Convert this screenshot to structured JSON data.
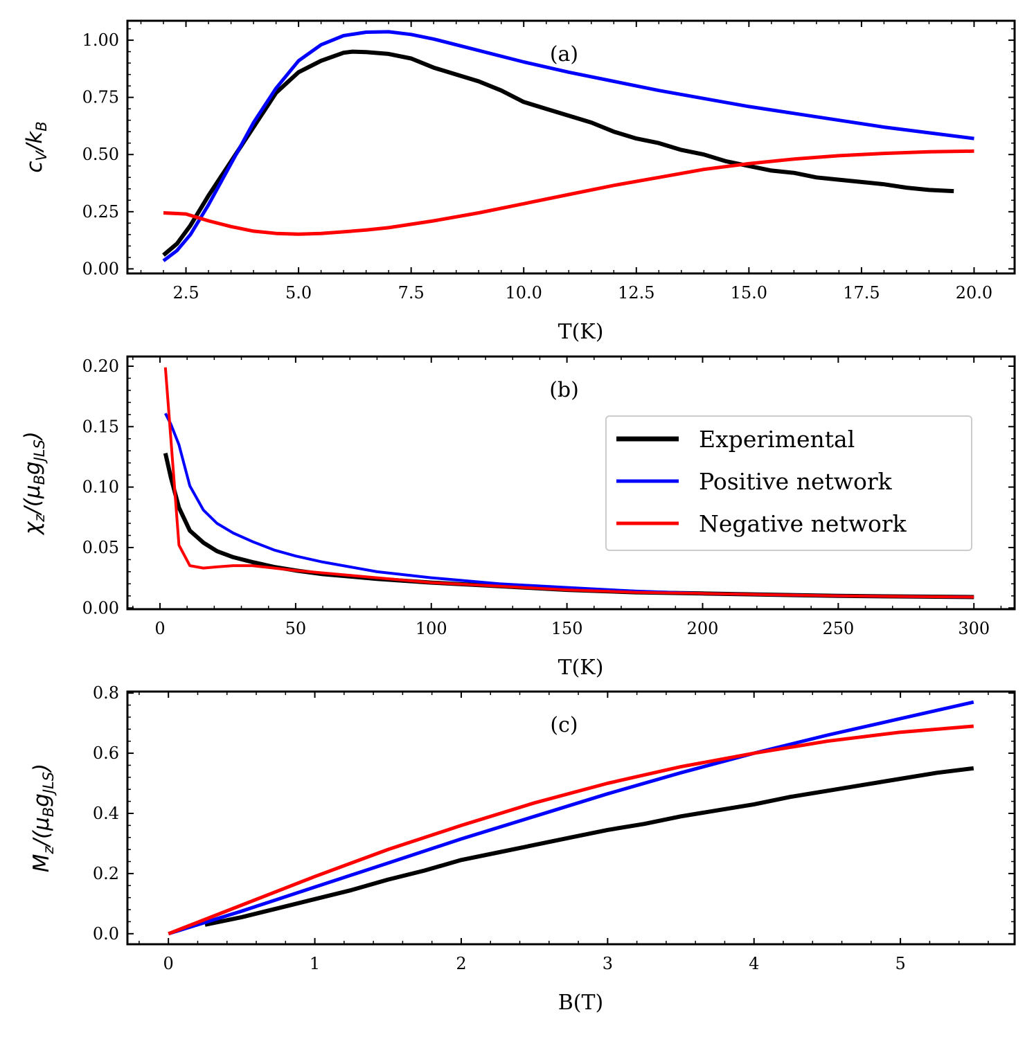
{
  "colors": {
    "experimental": "#000000",
    "positive": "#0000ff",
    "negative": "#ff0000"
  },
  "legend": {
    "entries": [
      "Experimental",
      "Positive network",
      "Negative network"
    ],
    "location": "right (panel b)"
  },
  "chart_data": [
    {
      "type": "line",
      "panel_label": "(a)",
      "xlabel": "T(K)",
      "ylabel_parts": [
        "c",
        "V",
        "/k",
        "B"
      ],
      "xlim": [
        1.2,
        20.9
      ],
      "ylim": [
        -0.02,
        1.085
      ],
      "xticks": [
        2.5,
        5.0,
        7.5,
        10.0,
        12.5,
        15.0,
        17.5,
        20.0
      ],
      "xtick_labels": [
        "2.5",
        "5.0",
        "7.5",
        "10.0",
        "12.5",
        "15.0",
        "17.5",
        "20.0"
      ],
      "yticks": [
        0.0,
        0.25,
        0.5,
        0.75,
        1.0
      ],
      "ytick_labels": [
        "0.00",
        "0.25",
        "0.50",
        "0.75",
        "1.00"
      ],
      "series": [
        {
          "name": "Experimental",
          "color": "#000000",
          "width": 6,
          "x": [
            2.0,
            2.3,
            2.6,
            3.0,
            3.5,
            4.0,
            4.5,
            5.0,
            5.5,
            6.0,
            6.2,
            6.5,
            7.0,
            7.5,
            8.0,
            8.5,
            9.0,
            9.5,
            10.0,
            10.5,
            11.0,
            11.5,
            12.0,
            12.5,
            13.0,
            13.5,
            14.0,
            14.5,
            15.0,
            15.5,
            16.0,
            16.5,
            17.0,
            17.5,
            18.0,
            18.5,
            19.0,
            19.55
          ],
          "y": [
            0.06,
            0.11,
            0.19,
            0.32,
            0.47,
            0.62,
            0.77,
            0.86,
            0.91,
            0.945,
            0.95,
            0.948,
            0.94,
            0.92,
            0.88,
            0.85,
            0.82,
            0.78,
            0.73,
            0.7,
            0.67,
            0.64,
            0.6,
            0.57,
            0.55,
            0.52,
            0.5,
            0.47,
            0.45,
            0.43,
            0.42,
            0.4,
            0.39,
            0.38,
            0.37,
            0.355,
            0.345,
            0.34
          ]
        },
        {
          "name": "Positive network",
          "color": "#0000ff",
          "width": 5,
          "x": [
            2.0,
            2.3,
            2.6,
            3.0,
            3.5,
            4.0,
            4.5,
            5.0,
            5.5,
            6.0,
            6.5,
            7.0,
            7.5,
            8.0,
            9.0,
            10.0,
            11.0,
            12.0,
            13.0,
            14.0,
            15.0,
            16.0,
            17.0,
            18.0,
            19.0,
            20.0
          ],
          "y": [
            0.035,
            0.08,
            0.15,
            0.28,
            0.46,
            0.64,
            0.79,
            0.91,
            0.98,
            1.02,
            1.035,
            1.037,
            1.025,
            1.005,
            0.955,
            0.905,
            0.86,
            0.82,
            0.78,
            0.745,
            0.71,
            0.68,
            0.65,
            0.62,
            0.595,
            0.57
          ]
        },
        {
          "name": "Negative network",
          "color": "#ff0000",
          "width": 5,
          "x": [
            2.0,
            2.5,
            3.0,
            3.5,
            4.0,
            4.5,
            5.0,
            5.5,
            6.0,
            6.5,
            7.0,
            8.0,
            9.0,
            10.0,
            11.0,
            12.0,
            13.0,
            14.0,
            15.0,
            16.0,
            17.0,
            18.0,
            19.0,
            20.0
          ],
          "y": [
            0.245,
            0.24,
            0.21,
            0.185,
            0.165,
            0.155,
            0.152,
            0.155,
            0.162,
            0.17,
            0.18,
            0.21,
            0.245,
            0.285,
            0.325,
            0.365,
            0.4,
            0.435,
            0.46,
            0.48,
            0.495,
            0.505,
            0.512,
            0.515
          ]
        }
      ]
    },
    {
      "type": "line",
      "panel_label": "(b)",
      "xlabel": "T(K)",
      "ylabel_parts": [
        "χ",
        "z",
        "/(μ",
        "B",
        "g",
        "JLS",
        ")"
      ],
      "xlim": [
        -12,
        315
      ],
      "ylim": [
        -0.001,
        0.208
      ],
      "xticks": [
        0,
        50,
        100,
        150,
        200,
        250,
        300
      ],
      "xtick_labels": [
        "0",
        "50",
        "100",
        "150",
        "200",
        "250",
        "300"
      ],
      "yticks": [
        0.0,
        0.05,
        0.1,
        0.15,
        0.2
      ],
      "ytick_labels": [
        "0.00",
        "0.05",
        "0.10",
        "0.15",
        "0.20"
      ],
      "series": [
        {
          "name": "Experimental",
          "color": "#000000",
          "width": 6,
          "x": [
            2,
            4,
            7,
            11,
            16,
            21,
            27,
            34,
            42,
            50,
            60,
            70,
            80,
            100,
            125,
            150,
            175,
            200,
            250,
            300
          ],
          "y": [
            0.128,
            0.108,
            0.083,
            0.064,
            0.054,
            0.047,
            0.042,
            0.038,
            0.034,
            0.031,
            0.028,
            0.026,
            0.024,
            0.021,
            0.018,
            0.015,
            0.013,
            0.012,
            0.01,
            0.009
          ]
        },
        {
          "name": "Positive network",
          "color": "#0000ff",
          "width": 4,
          "x": [
            2,
            4,
            7,
            11,
            16,
            21,
            27,
            34,
            42,
            50,
            60,
            70,
            80,
            100,
            125,
            150,
            175,
            200,
            250,
            300
          ],
          "y": [
            0.161,
            0.152,
            0.135,
            0.101,
            0.081,
            0.07,
            0.062,
            0.055,
            0.048,
            0.043,
            0.038,
            0.034,
            0.03,
            0.025,
            0.02,
            0.017,
            0.014,
            0.012,
            0.01,
            0.009
          ]
        },
        {
          "name": "Negative network",
          "color": "#ff0000",
          "width": 4,
          "x": [
            2,
            4,
            7,
            11,
            16,
            21,
            27,
            34,
            42,
            50,
            60,
            70,
            80,
            100,
            125,
            150,
            175,
            200,
            250,
            300
          ],
          "y": [
            0.199,
            0.14,
            0.052,
            0.035,
            0.033,
            0.034,
            0.035,
            0.035,
            0.033,
            0.031,
            0.029,
            0.027,
            0.025,
            0.021,
            0.018,
            0.015,
            0.013,
            0.012,
            0.01,
            0.009
          ]
        }
      ]
    },
    {
      "type": "line",
      "panel_label": "(c)",
      "xlabel": "B(T)",
      "ylabel_parts": [
        "M",
        "z",
        "/(μ",
        "B",
        "g",
        "JLS",
        ")"
      ],
      "xlim": [
        -0.28,
        5.78
      ],
      "ylim": [
        -0.035,
        0.805
      ],
      "xticks": [
        0,
        1,
        2,
        3,
        4,
        5
      ],
      "xtick_labels": [
        "0",
        "1",
        "2",
        "3",
        "4",
        "5"
      ],
      "yticks": [
        0.0,
        0.2,
        0.4,
        0.6,
        0.8
      ],
      "ytick_labels": [
        "0.0",
        "0.2",
        "0.4",
        "0.6",
        "0.8"
      ],
      "series": [
        {
          "name": "Experimental",
          "color": "#000000",
          "width": 6,
          "x": [
            0.25,
            0.5,
            0.75,
            1.0,
            1.25,
            1.5,
            1.75,
            2.0,
            2.25,
            2.5,
            2.75,
            3.0,
            3.25,
            3.5,
            3.75,
            4.0,
            4.25,
            4.5,
            4.75,
            5.0,
            5.25,
            5.5
          ],
          "y": [
            0.03,
            0.055,
            0.085,
            0.115,
            0.145,
            0.18,
            0.21,
            0.245,
            0.27,
            0.295,
            0.32,
            0.345,
            0.365,
            0.39,
            0.41,
            0.43,
            0.455,
            0.475,
            0.495,
            0.515,
            0.535,
            0.55
          ]
        },
        {
          "name": "Positive network",
          "color": "#0000ff",
          "width": 5,
          "x": [
            0,
            0.5,
            1.0,
            1.5,
            2.0,
            2.5,
            3.0,
            3.5,
            4.0,
            4.5,
            5.0,
            5.5
          ],
          "y": [
            0.0,
            0.075,
            0.155,
            0.235,
            0.315,
            0.39,
            0.465,
            0.535,
            0.6,
            0.66,
            0.715,
            0.77
          ]
        },
        {
          "name": "Negative network",
          "color": "#ff0000",
          "width": 5,
          "x": [
            0,
            0.5,
            1.0,
            1.5,
            2.0,
            2.5,
            3.0,
            3.5,
            4.0,
            4.5,
            5.0,
            5.5
          ],
          "y": [
            0.0,
            0.095,
            0.19,
            0.28,
            0.36,
            0.435,
            0.5,
            0.555,
            0.6,
            0.64,
            0.67,
            0.69
          ]
        }
      ]
    }
  ]
}
